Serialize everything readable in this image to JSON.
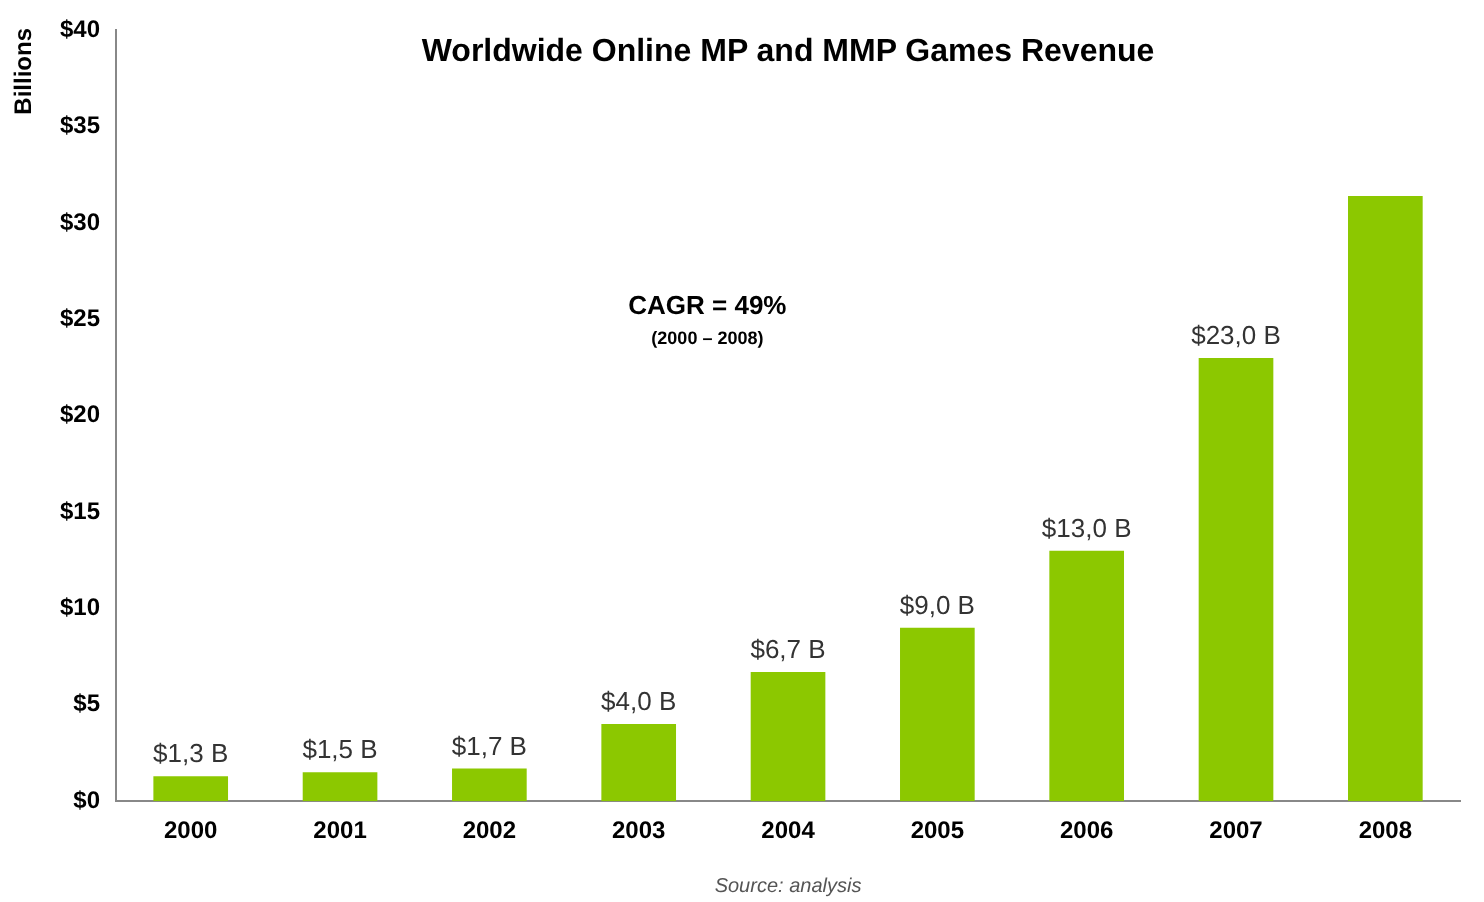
{
  "chart_data": {
    "type": "bar",
    "title": "Worldwide Online MP and MMP Games Revenue",
    "ylabel": "Billions",
    "categories": [
      "2000",
      "2001",
      "2002",
      "2003",
      "2004",
      "2005",
      "2006",
      "2007",
      "2008"
    ],
    "values": [
      1.3,
      1.5,
      1.7,
      4.0,
      6.7,
      9.0,
      13.0,
      23.0,
      31.4
    ],
    "value_labels": [
      "$1,3 B",
      "$1,5 B",
      "$1,7 B",
      "$4,0 B",
      "$6,7 B",
      "$9,0 B",
      "$13,0 B",
      "$23,0 B",
      null
    ],
    "color": "#8cc800",
    "ylim": [
      0,
      40
    ],
    "yticks": [
      {
        "value": 0,
        "label": "$0"
      },
      {
        "value": 5,
        "label": "$5"
      },
      {
        "value": 10,
        "label": "$10"
      },
      {
        "value": 15,
        "label": "$15"
      },
      {
        "value": 20,
        "label": "$20"
      },
      {
        "value": 25,
        "label": "$25"
      },
      {
        "value": 30,
        "label": "$30"
      },
      {
        "value": 35,
        "label": "$35"
      },
      {
        "value": 40,
        "label": "$40"
      }
    ],
    "grid": false,
    "legend": false,
    "annotations": [
      "CAGR = 49%",
      "(2000 – 2008)",
      "Source: analysis"
    ]
  }
}
